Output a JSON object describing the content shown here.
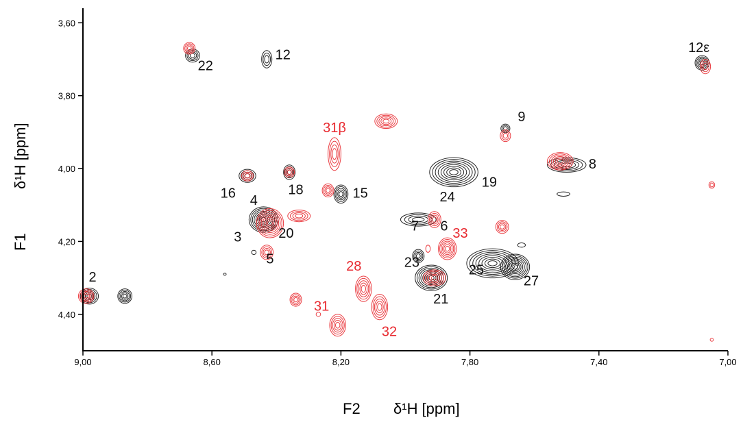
{
  "chart_data": {
    "type": "scatter",
    "subtype": "2D NMR contour spectrum",
    "x_axis": {
      "prefix": "F2",
      "label": "δ¹H [ppm]",
      "range": [
        9.0,
        7.0
      ],
      "reversed": true,
      "ticks": [
        "9,00",
        "8,60",
        "8,20",
        "7,80",
        "7,40",
        "7,00"
      ],
      "tick_values": [
        9.0,
        8.6,
        8.2,
        7.8,
        7.4,
        7.0
      ]
    },
    "y_axis": {
      "prefix": "F1",
      "label": "δ¹H [ppm]",
      "range": [
        3.56,
        4.5
      ],
      "reversed": true,
      "ticks": [
        "3,60",
        "3,80",
        "4,00",
        "4,20",
        "4,40"
      ],
      "tick_values": [
        3.6,
        3.8,
        4.0,
        4.2,
        4.4
      ]
    },
    "grid": false,
    "series": [
      {
        "color": "#111111",
        "peaks": [
          {
            "x": 8.66,
            "y": 3.69,
            "sx": 0.022,
            "sy": 0.018
          },
          {
            "x": 8.43,
            "y": 3.7,
            "sx": 0.016,
            "sy": 0.024
          },
          {
            "x": 7.08,
            "y": 3.71,
            "sx": 0.022,
            "sy": 0.02
          },
          {
            "x": 7.69,
            "y": 3.89,
            "sx": 0.014,
            "sy": 0.012
          },
          {
            "x": 7.5,
            "y": 3.99,
            "sx": 0.06,
            "sy": 0.02
          },
          {
            "x": 7.85,
            "y": 4.01,
            "sx": 0.075,
            "sy": 0.04
          },
          {
            "x": 8.49,
            "y": 4.02,
            "sx": 0.026,
            "sy": 0.018
          },
          {
            "x": 8.36,
            "y": 4.01,
            "sx": 0.018,
            "sy": 0.02
          },
          {
            "x": 8.2,
            "y": 4.07,
            "sx": 0.022,
            "sy": 0.025
          },
          {
            "x": 7.51,
            "y": 4.07,
            "sx": 0.02,
            "sy": 0.006
          },
          {
            "x": 8.44,
            "y": 4.14,
            "sx": 0.045,
            "sy": 0.035
          },
          {
            "x": 7.96,
            "y": 4.14,
            "sx": 0.055,
            "sy": 0.018
          },
          {
            "x": 7.73,
            "y": 4.26,
            "sx": 0.08,
            "sy": 0.04
          },
          {
            "x": 7.66,
            "y": 4.27,
            "sx": 0.045,
            "sy": 0.035
          },
          {
            "x": 7.92,
            "y": 4.3,
            "sx": 0.05,
            "sy": 0.035
          },
          {
            "x": 7.96,
            "y": 4.24,
            "sx": 0.018,
            "sy": 0.018
          },
          {
            "x": 8.87,
            "y": 4.35,
            "sx": 0.022,
            "sy": 0.02
          },
          {
            "x": 8.98,
            "y": 4.35,
            "sx": 0.028,
            "sy": 0.022
          },
          {
            "x": 7.64,
            "y": 4.21,
            "sx": 0.012,
            "sy": 0.006
          },
          {
            "x": 8.47,
            "y": 4.23,
            "sx": 0.007,
            "sy": 0.006
          },
          {
            "x": 8.56,
            "y": 4.29,
            "sx": 0.004,
            "sy": 0.003
          }
        ]
      },
      {
        "color": "#e8292f",
        "peaks": [
          {
            "x": 8.67,
            "y": 3.67,
            "sx": 0.018,
            "sy": 0.016
          },
          {
            "x": 7.07,
            "y": 3.72,
            "sx": 0.016,
            "sy": 0.02
          },
          {
            "x": 8.06,
            "y": 3.87,
            "sx": 0.035,
            "sy": 0.02
          },
          {
            "x": 7.69,
            "y": 3.91,
            "sx": 0.016,
            "sy": 0.016
          },
          {
            "x": 8.22,
            "y": 3.96,
            "sx": 0.02,
            "sy": 0.045
          },
          {
            "x": 7.52,
            "y": 3.98,
            "sx": 0.04,
            "sy": 0.024
          },
          {
            "x": 8.49,
            "y": 4.02,
            "sx": 0.018,
            "sy": 0.014
          },
          {
            "x": 8.36,
            "y": 4.01,
            "sx": 0.016,
            "sy": 0.014
          },
          {
            "x": 8.24,
            "y": 4.06,
            "sx": 0.018,
            "sy": 0.018
          },
          {
            "x": 7.05,
            "y": 4.045,
            "sx": 0.009,
            "sy": 0.009
          },
          {
            "x": 8.42,
            "y": 4.15,
            "sx": 0.042,
            "sy": 0.04
          },
          {
            "x": 8.33,
            "y": 4.13,
            "sx": 0.035,
            "sy": 0.016
          },
          {
            "x": 7.91,
            "y": 4.14,
            "sx": 0.02,
            "sy": 0.022
          },
          {
            "x": 7.7,
            "y": 4.16,
            "sx": 0.02,
            "sy": 0.018
          },
          {
            "x": 8.43,
            "y": 4.23,
            "sx": 0.02,
            "sy": 0.02
          },
          {
            "x": 7.87,
            "y": 4.22,
            "sx": 0.028,
            "sy": 0.03
          },
          {
            "x": 7.93,
            "y": 4.22,
            "sx": 0.007,
            "sy": 0.01
          },
          {
            "x": 7.91,
            "y": 4.3,
            "sx": 0.035,
            "sy": 0.022
          },
          {
            "x": 8.13,
            "y": 4.33,
            "sx": 0.025,
            "sy": 0.035
          },
          {
            "x": 8.08,
            "y": 4.38,
            "sx": 0.025,
            "sy": 0.035
          },
          {
            "x": 8.99,
            "y": 4.35,
            "sx": 0.024,
            "sy": 0.02
          },
          {
            "x": 8.34,
            "y": 4.36,
            "sx": 0.018,
            "sy": 0.018
          },
          {
            "x": 8.21,
            "y": 4.43,
            "sx": 0.025,
            "sy": 0.03
          },
          {
            "x": 8.27,
            "y": 4.4,
            "sx": 0.007,
            "sy": 0.006
          },
          {
            "x": 7.05,
            "y": 4.47,
            "sx": 0.005,
            "sy": 0.004
          }
        ]
      }
    ],
    "peak_labels": [
      {
        "text": "22",
        "x": 8.62,
        "y": 3.73,
        "color": "#111111"
      },
      {
        "text": "12",
        "x": 8.38,
        "y": 3.7,
        "color": "#111111"
      },
      {
        "text": "12ε",
        "x": 7.09,
        "y": 3.68,
        "color": "#111111"
      },
      {
        "text": "31β",
        "x": 8.22,
        "y": 3.9,
        "color": "#e8292f"
      },
      {
        "text": "9",
        "x": 7.64,
        "y": 3.87,
        "color": "#111111"
      },
      {
        "text": "8",
        "x": 7.42,
        "y": 4.0,
        "color": "#111111"
      },
      {
        "text": "19",
        "x": 7.74,
        "y": 4.05,
        "color": "#111111"
      },
      {
        "text": "16",
        "x": 8.55,
        "y": 4.08,
        "color": "#111111"
      },
      {
        "text": "18",
        "x": 8.34,
        "y": 4.07,
        "color": "#111111"
      },
      {
        "text": "15",
        "x": 8.14,
        "y": 4.08,
        "color": "#111111"
      },
      {
        "text": "24",
        "x": 7.87,
        "y": 4.09,
        "color": "#111111"
      },
      {
        "text": "4",
        "x": 8.47,
        "y": 4.1,
        "color": "#111111"
      },
      {
        "text": "7",
        "x": 7.97,
        "y": 4.17,
        "color": "#111111"
      },
      {
        "text": "6",
        "x": 7.88,
        "y": 4.17,
        "color": "#111111"
      },
      {
        "text": "33",
        "x": 7.83,
        "y": 4.19,
        "color": "#e8292f"
      },
      {
        "text": "3",
        "x": 8.52,
        "y": 4.2,
        "color": "#111111"
      },
      {
        "text": "20",
        "x": 8.37,
        "y": 4.19,
        "color": "#111111"
      },
      {
        "text": "5",
        "x": 8.42,
        "y": 4.26,
        "color": "#111111"
      },
      {
        "text": "23",
        "x": 7.98,
        "y": 4.27,
        "color": "#111111"
      },
      {
        "text": "25",
        "x": 7.78,
        "y": 4.29,
        "color": "#111111"
      },
      {
        "text": "28",
        "x": 8.16,
        "y": 4.28,
        "color": "#e8292f"
      },
      {
        "text": "27",
        "x": 7.61,
        "y": 4.32,
        "color": "#111111"
      },
      {
        "text": "2",
        "x": 8.97,
        "y": 4.31,
        "color": "#111111"
      },
      {
        "text": "21",
        "x": 7.89,
        "y": 4.37,
        "color": "#111111"
      },
      {
        "text": "31",
        "x": 8.26,
        "y": 4.39,
        "color": "#e8292f"
      },
      {
        "text": "32",
        "x": 8.05,
        "y": 4.46,
        "color": "#e8292f"
      }
    ]
  }
}
